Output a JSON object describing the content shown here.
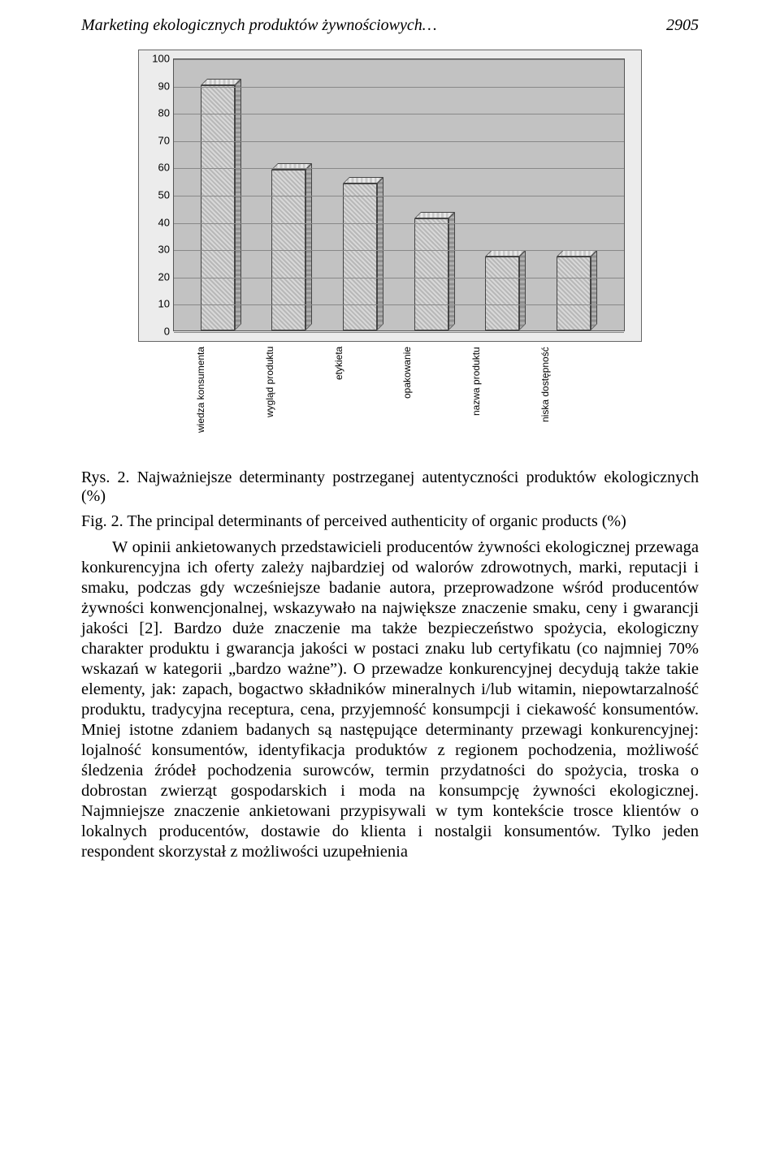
{
  "header": {
    "running_title": "Marketing ekologicznych produktów żywnościowych…",
    "page_number": "2905"
  },
  "chart": {
    "type": "bar",
    "y": {
      "min": 0,
      "max": 100,
      "ticks": [
        0,
        10,
        20,
        30,
        40,
        50,
        60,
        70,
        80,
        90,
        100
      ]
    },
    "bars": [
      {
        "label": "wiedza konsumenta",
        "value": 90
      },
      {
        "label": "wygląd produktu",
        "value": 59
      },
      {
        "label": "etykieta",
        "value": 54
      },
      {
        "label": "opakowanie",
        "value": 41
      },
      {
        "label": "nazwa produktu",
        "value": 27
      },
      {
        "label": "niska dostępność",
        "value": 27
      }
    ],
    "colors": {
      "axis_bg": "#ececec",
      "plot_bg": "#c2c2c2",
      "grid": "#888888",
      "bar_front": "#d0d0d0",
      "bar_side": "#a0a0a0",
      "bar_top": "#e0e0e0",
      "border": "#444444"
    },
    "font": {
      "family": "Arial",
      "size_pt": 10
    }
  },
  "caption": {
    "line1_label": "Rys. 2.",
    "line1_text": " Najważniejsze determinanty postrzeganej autentyczności produktów ekologicznych (%)",
    "line2_label": "Fig. 2.",
    "line2_text": " The principal determinants of perceived authenticity of organic products (%)"
  },
  "body": "W opinii ankietowanych przedstawicieli producentów żywności ekologicznej przewaga konkurencyjna ich oferty zależy najbardziej od walorów zdrowotnych, marki, reputacji i smaku, podczas gdy wcześniejsze badanie autora, przeprowadzone wśród producentów żywności konwencjonalnej, wskazywało na największe znaczenie smaku, ceny i gwarancji jakości [2]. Bardzo duże znaczenie ma także bezpieczeństwo spożycia, ekologiczny charakter produktu i gwarancja jakości w postaci znaku lub certyfikatu (co najmniej 70% wskazań w kategorii „bardzo ważne”). O przewadze konkurencyjnej decydują także takie elementy, jak: zapach, bogactwo składników mineralnych i/lub witamin, niepowtarzalność produktu, tradycyjna receptura, cena, przyjemność konsumpcji i ciekawość konsumentów. Mniej istotne zdaniem badanych są następujące determinanty przewagi konkurencyjnej: lojalność konsumentów, identyfikacja produktów z regionem pochodzenia, możliwość śledzenia źródeł pochodzenia surowców, termin przydatności do spożycia, troska o dobrostan zwierząt gospodarskich i moda na konsumpcję żywności ekologicznej. Najmniejsze znaczenie ankietowani przypisywali w tym kontekście trosce klientów o lokalnych producentów, dostawie do klienta i nostalgii konsumentów. Tylko jeden respondent skorzystał z możliwości uzupełnienia"
}
